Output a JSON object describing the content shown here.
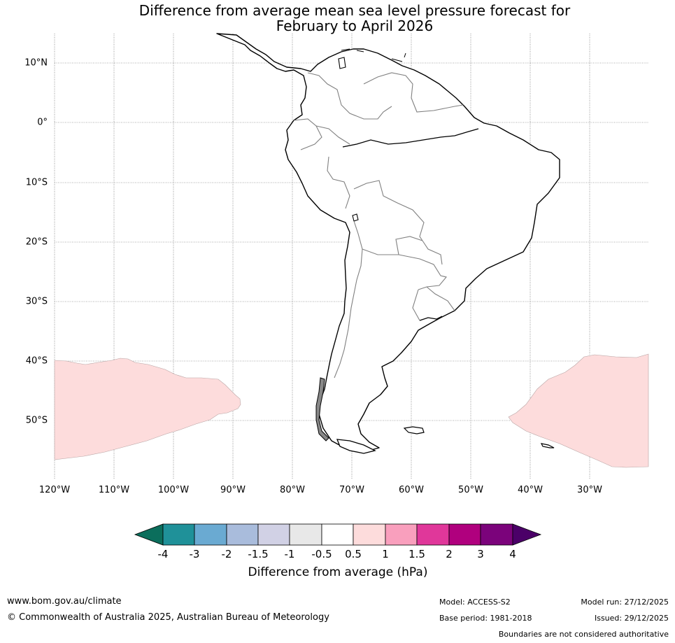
{
  "title": {
    "line1": "Difference from average mean sea level pressure forecast for",
    "line2": "February to April 2026"
  },
  "map": {
    "latitude_labels": [
      "10°N",
      "0°",
      "10°S",
      "20°S",
      "30°S",
      "40°S",
      "50°S"
    ],
    "longitude_labels": [
      "120°W",
      "110°W",
      "100°W",
      "90°W",
      "80°W",
      "70°W",
      "60°W",
      "50°W",
      "40°W",
      "30°W"
    ],
    "anomaly_regions": [
      {
        "area": "Pacific Ocean west of Chile",
        "lat_range": [
          -57,
          -39
        ],
        "lon_range": [
          -120,
          -89
        ],
        "category": "0.5 to 1"
      },
      {
        "area": "South Atlantic east of Argentina",
        "lat_range": [
          -59,
          -39
        ],
        "lon_range": [
          -43,
          -20
        ],
        "category": "0.5 to 1"
      }
    ],
    "colors": {
      "land_fill": "#ffffff",
      "coastline": "#000000",
      "borders": "#808080",
      "gridline": "#555555",
      "positive_anomaly_fill": "#fddcdc"
    }
  },
  "colorbar": {
    "tick_labels": [
      "-4",
      "-3",
      "-2",
      "-1.5",
      "-1",
      "-0.5",
      "0.5",
      "1",
      "1.5",
      "2",
      "3",
      "4"
    ],
    "colors": [
      "#0b6e5c",
      "#1f9199",
      "#6aaad2",
      "#a9bcdc",
      "#d1d1e5",
      "#e8e8e8",
      "#ffffff",
      "#fddcdc",
      "#f99fbd",
      "#e0379a",
      "#b0007e",
      "#7b037b",
      "#4b0068"
    ],
    "label": "Difference from average (hPa)"
  },
  "footer": {
    "url": "www.bom.gov.au/climate",
    "copyright": "© Commonwealth of Australia 2025, Australian Bureau of Meteorology",
    "model": "Model: ACCESS-S2",
    "base_period": "Base period: 1981-2018",
    "model_run": "Model run: 27/12/2025",
    "issued": "Issued: 29/12/2025",
    "disclaimer": "Boundaries are not considered authoritative"
  }
}
